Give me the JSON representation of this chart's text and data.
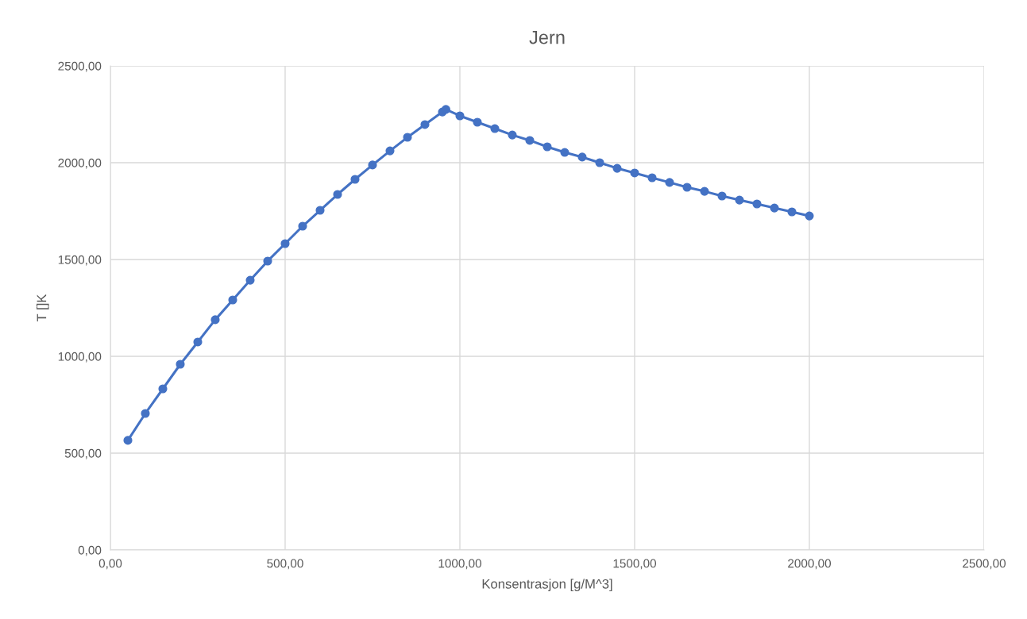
{
  "chart_data": {
    "type": "line",
    "title": "Jern",
    "xlabel": "Konsentrasjon [g/M^3]",
    "ylabel": "T []K",
    "series": [
      {
        "color": "#4472c4",
        "x": [
          50,
          100,
          150,
          200,
          250,
          300,
          350,
          400,
          450,
          500,
          550,
          600,
          650,
          700,
          750,
          800,
          850,
          900,
          950,
          960,
          1000,
          1050,
          1100,
          1150,
          1200,
          1250,
          1300,
          1350,
          1400,
          1450,
          1500,
          1550,
          1600,
          1650,
          1700,
          1750,
          1800,
          1850,
          1900,
          1950,
          2000
        ],
        "values": [
          566,
          705,
          832,
          959,
          1074,
          1189,
          1291,
          1393,
          1492,
          1582,
          1672,
          1754,
          1836,
          1914,
          1988,
          2061,
          2131,
          2197,
          2262,
          2275,
          2242,
          2209,
          2176,
          2143,
          2115,
          2082,
          2053,
          2029,
          2000,
          1971,
          1947,
          1922,
          1898,
          1873,
          1852,
          1828,
          1807,
          1787,
          1766,
          1746,
          1725
        ]
      }
    ],
    "xlim": [
      0,
      2500
    ],
    "ylim": [
      0,
      2500
    ],
    "xticks": [
      {
        "value": 0,
        "label": "0,00"
      },
      {
        "value": 500,
        "label": "500,00"
      },
      {
        "value": 1000,
        "label": "1000,00"
      },
      {
        "value": 1500,
        "label": "1500,00"
      },
      {
        "value": 2000,
        "label": "2000,00"
      },
      {
        "value": 2500,
        "label": "2500,00"
      }
    ],
    "yticks": [
      {
        "value": 0,
        "label": "0,00"
      },
      {
        "value": 500,
        "label": "500,00"
      },
      {
        "value": 1000,
        "label": "1000,00"
      },
      {
        "value": 1500,
        "label": "1500,00"
      },
      {
        "value": 2000,
        "label": "2000,00"
      },
      {
        "value": 2500,
        "label": "2500,00"
      }
    ],
    "grid": true,
    "marker": "circle",
    "line_style": "solid"
  }
}
